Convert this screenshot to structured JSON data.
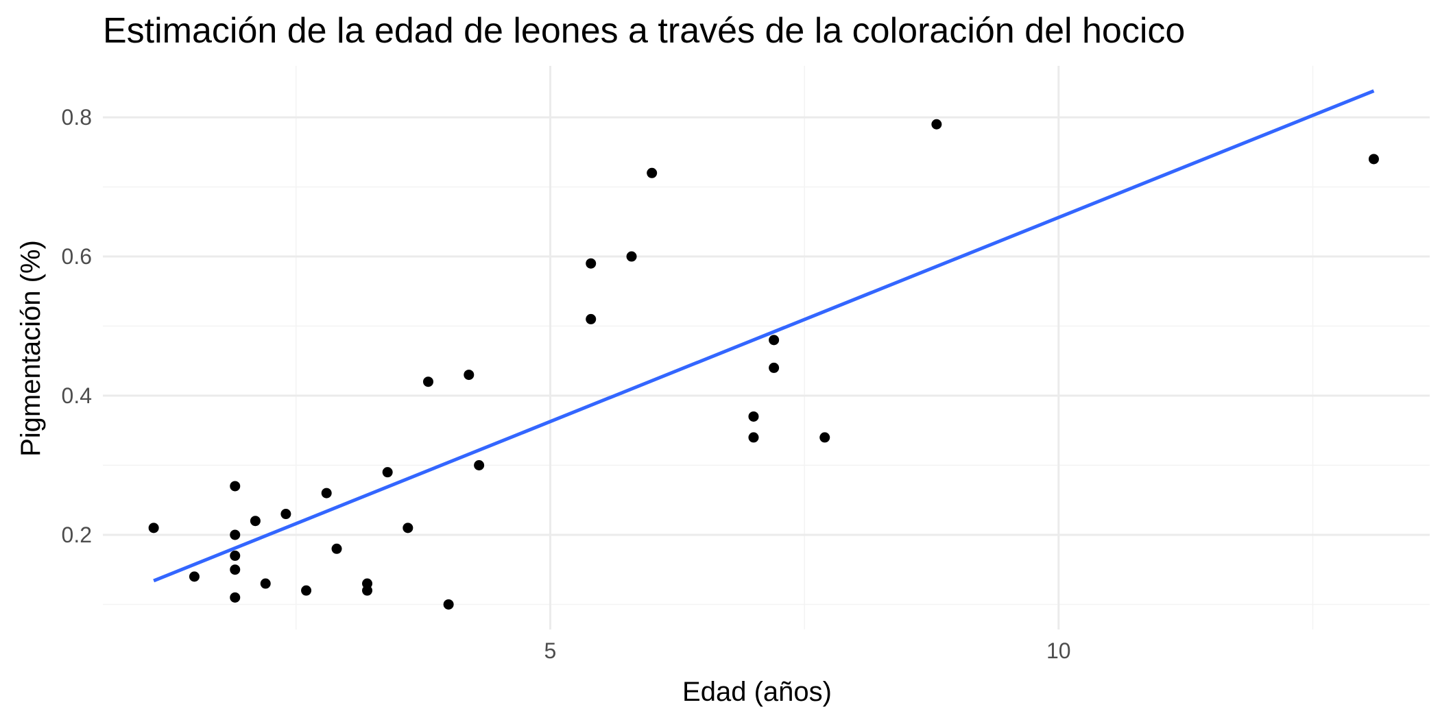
{
  "chart_data": {
    "type": "scatter",
    "title": "Estimación de la edad de leones a través de la coloración del hocico",
    "xlabel": "Edad (años)",
    "ylabel": "Pigmentación (%)",
    "xlim": [
      0.6,
      13.65
    ],
    "ylim": [
      0.064,
      0.874
    ],
    "x_ticks": [
      5,
      10
    ],
    "x_tick_labels": [
      "5",
      "10"
    ],
    "x_minor_ticks": [
      2.5,
      7.5,
      12.5
    ],
    "y_ticks": [
      0.2,
      0.4,
      0.6,
      0.8
    ],
    "y_tick_labels": [
      "0.2",
      "0.4",
      "0.6",
      "0.8"
    ],
    "y_minor_ticks": [
      0.1,
      0.3,
      0.5,
      0.7
    ],
    "grid": true,
    "legend": "none",
    "series": [
      {
        "points": [
          {
            "x": 1.1,
            "y": 0.21
          },
          {
            "x": 1.5,
            "y": 0.14
          },
          {
            "x": 1.9,
            "y": 0.27
          },
          {
            "x": 1.9,
            "y": 0.2
          },
          {
            "x": 1.9,
            "y": 0.17
          },
          {
            "x": 1.9,
            "y": 0.15
          },
          {
            "x": 1.9,
            "y": 0.11
          },
          {
            "x": 2.1,
            "y": 0.22
          },
          {
            "x": 2.2,
            "y": 0.13
          },
          {
            "x": 2.4,
            "y": 0.23
          },
          {
            "x": 2.6,
            "y": 0.12
          },
          {
            "x": 2.8,
            "y": 0.26
          },
          {
            "x": 2.9,
            "y": 0.18
          },
          {
            "x": 3.2,
            "y": 0.13
          },
          {
            "x": 3.2,
            "y": 0.12
          },
          {
            "x": 3.4,
            "y": 0.29
          },
          {
            "x": 3.6,
            "y": 0.21
          },
          {
            "x": 3.8,
            "y": 0.42
          },
          {
            "x": 4.0,
            "y": 0.1
          },
          {
            "x": 4.2,
            "y": 0.43
          },
          {
            "x": 4.3,
            "y": 0.3
          },
          {
            "x": 5.4,
            "y": 0.59
          },
          {
            "x": 5.4,
            "y": 0.51
          },
          {
            "x": 5.8,
            "y": 0.6
          },
          {
            "x": 6.0,
            "y": 0.72
          },
          {
            "x": 7.0,
            "y": 0.37
          },
          {
            "x": 7.0,
            "y": 0.34
          },
          {
            "x": 7.2,
            "y": 0.48
          },
          {
            "x": 7.2,
            "y": 0.44
          },
          {
            "x": 7.7,
            "y": 0.34
          },
          {
            "x": 8.8,
            "y": 0.79
          },
          {
            "x": 13.1,
            "y": 0.74
          }
        ]
      }
    ],
    "fit_line": {
      "x": [
        1.1,
        13.1
      ],
      "y": [
        0.134,
        0.838
      ]
    },
    "colors": {
      "points": "#000000",
      "fit_line": "#3366ff",
      "grid_major": "#ebebeb",
      "grid_minor": "#f3f3f3",
      "tick_text": "#4d4d4d",
      "text": "#000000",
      "background": "#ffffff"
    }
  }
}
